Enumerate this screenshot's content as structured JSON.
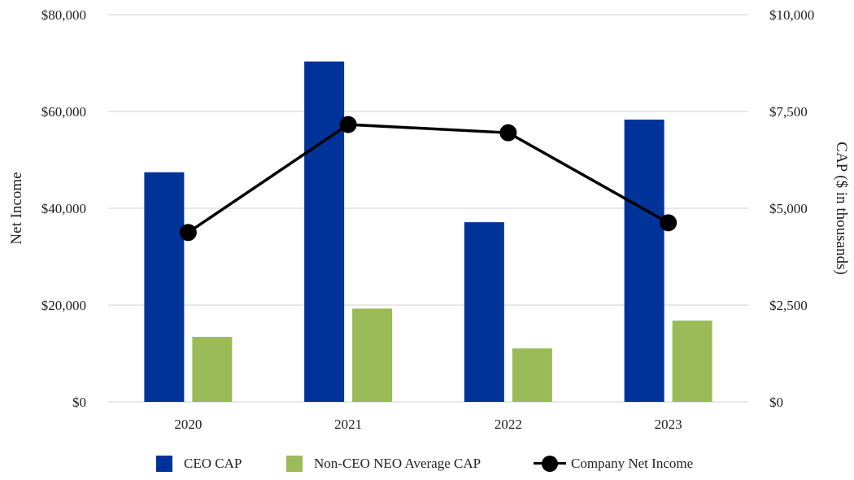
{
  "chart_data": {
    "type": "bar",
    "categories": [
      "2020",
      "2021",
      "2022",
      "2023"
    ],
    "series": [
      {
        "name": "CEO CAP",
        "type": "bar",
        "axis": "right",
        "color": "#003399",
        "values": [
          5930,
          8790,
          4640,
          7290
        ]
      },
      {
        "name": "Non-CEO NEO Average CAP",
        "type": "bar",
        "axis": "right",
        "color": "#9BBB59",
        "values": [
          1680,
          2410,
          1380,
          2100
        ]
      },
      {
        "name": "Company Net Income",
        "type": "line",
        "axis": "left",
        "color": "#000000",
        "values": [
          35000,
          57300,
          55600,
          37000
        ]
      }
    ],
    "left_axis": {
      "label": "Net Income",
      "ylim": [
        0,
        80000
      ],
      "ticks": [
        "$0",
        "$20,000",
        "$40,000",
        "$60,000",
        "$80,000"
      ]
    },
    "right_axis": {
      "label": "CAP ($ in thousands)",
      "ylim": [
        0,
        10000
      ],
      "ticks": [
        "$0",
        "$2,500",
        "$5,000",
        "$7,500",
        "$10,000"
      ]
    },
    "grid": true,
    "legend_position": "bottom"
  }
}
